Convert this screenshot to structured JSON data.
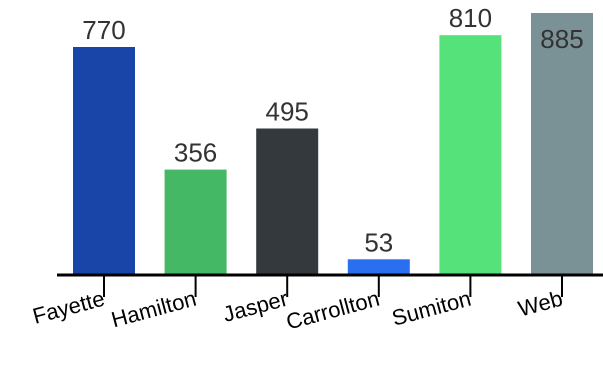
{
  "chart_data": {
    "type": "bar",
    "title": "",
    "xlabel": "",
    "ylabel": "",
    "ylim": [
      0,
      900
    ],
    "grid": false,
    "categories": [
      "Fayette",
      "Hamilton",
      "Jasper",
      "Carrollton",
      "Sumiton",
      "Web"
    ],
    "values": [
      770,
      356,
      495,
      53,
      810,
      885
    ],
    "colors": [
      "#1a45a8",
      "#44b865",
      "#33393d",
      "#2a6fef",
      "#55e27a",
      "#7a9296"
    ],
    "value_label_color": "#333333",
    "value_label_inside_last": true
  }
}
